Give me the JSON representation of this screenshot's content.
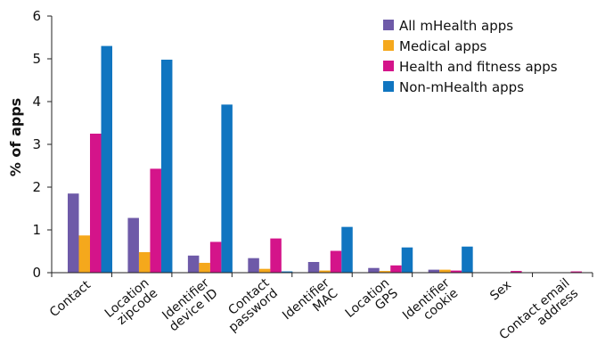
{
  "chart_data": {
    "type": "bar",
    "ylabel": "% of apps",
    "ylim": [
      0,
      6
    ],
    "yticks": [
      0,
      1,
      2,
      3,
      4,
      5,
      6
    ],
    "grid": false,
    "legend": "top-right",
    "categories": [
      [
        "Contact"
      ],
      [
        "Location",
        "zipcode"
      ],
      [
        "Identifier",
        "device ID"
      ],
      [
        "Contact",
        "password"
      ],
      [
        "Identifier",
        "MAC"
      ],
      [
        "Location",
        "GPS"
      ],
      [
        "Identifier",
        "cookie"
      ],
      [
        "Sex"
      ],
      [
        "Contact email",
        "address"
      ]
    ],
    "series": [
      {
        "name": "All mHealth apps",
        "color": "#6e5aa8",
        "values": [
          1.85,
          1.28,
          0.4,
          0.34,
          0.25,
          0.11,
          0.07,
          0.01,
          0.01
        ]
      },
      {
        "name": "Medical apps",
        "color": "#f5a81c",
        "values": [
          0.87,
          0.48,
          0.23,
          0.09,
          0.05,
          0.04,
          0.07,
          0.0,
          0.0
        ]
      },
      {
        "name": "Health and fitness apps",
        "color": "#d4148a",
        "values": [
          3.25,
          2.43,
          0.72,
          0.8,
          0.51,
          0.17,
          0.05,
          0.04,
          0.03
        ]
      },
      {
        "name": "Non-mHealth apps",
        "color": "#1075c0",
        "values": [
          5.3,
          4.98,
          3.93,
          0.03,
          1.07,
          0.59,
          0.61,
          0.0,
          0.0
        ]
      }
    ]
  }
}
